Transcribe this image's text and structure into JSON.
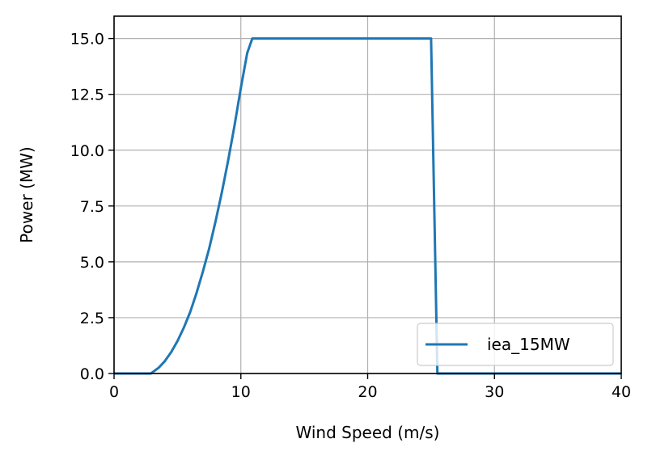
{
  "chart_data": {
    "type": "line",
    "xlabel": "Wind Speed (m/s)",
    "ylabel": "Power (MW)",
    "xlim": [
      0,
      40
    ],
    "ylim": [
      0,
      16
    ],
    "x_ticks": [
      "0",
      "10",
      "20",
      "30",
      "40"
    ],
    "y_ticks": [
      "0.0",
      "2.5",
      "5.0",
      "7.5",
      "10.0",
      "12.5",
      "15.0"
    ],
    "grid": true,
    "legend_position": "lower-right",
    "series": [
      {
        "name": "iea_15MW",
        "color": "#1f77b4",
        "x": [
          0,
          2.9,
          3.5,
          4,
          4.5,
          5,
          5.5,
          6,
          6.5,
          7,
          7.5,
          8,
          8.5,
          9,
          9.5,
          10,
          10.5,
          10.9,
          11.5,
          15,
          20,
          25,
          25.0,
          25.5,
          26,
          30,
          40
        ],
        "y": [
          0,
          0,
          0.25,
          0.55,
          0.95,
          1.45,
          2.05,
          2.75,
          3.6,
          4.55,
          5.6,
          6.8,
          8.1,
          9.55,
          11.1,
          12.8,
          14.35,
          15.0,
          15.0,
          15.0,
          15.0,
          15.0,
          15.0,
          0,
          0,
          0,
          0
        ]
      }
    ]
  }
}
